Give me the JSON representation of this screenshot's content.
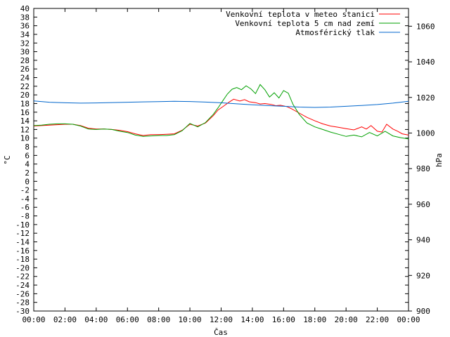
{
  "chart_data": {
    "type": "line",
    "xlabel": "Čas",
    "ylabel": "°C",
    "y2label": "hPa",
    "x_ticks": [
      "00:00",
      "02:00",
      "04:00",
      "06:00",
      "08:00",
      "10:00",
      "12:00",
      "14:00",
      "16:00",
      "18:00",
      "20:00",
      "22:00",
      "00:00"
    ],
    "xlim_hours": [
      0,
      24
    ],
    "ylim": [
      -30,
      40
    ],
    "y_tick_step": 2,
    "y2lim": [
      900,
      1070
    ],
    "y2_ticks": [
      900,
      920,
      940,
      960,
      980,
      1000,
      1020,
      1040,
      1060
    ],
    "grid": false,
    "legend_position": "top-right",
    "series": [
      {
        "name": "Venkovní teplota v meteo stanici",
        "color": "#ff0000",
        "axis": "left",
        "x": [
          0,
          0.5,
          1,
          1.5,
          2,
          2.5,
          3,
          3.5,
          4,
          4.5,
          5,
          5.5,
          6,
          6.5,
          7,
          7.5,
          8,
          8.5,
          9,
          9.5,
          10,
          10.5,
          11,
          11.5,
          11.8,
          12.2,
          12.5,
          12.8,
          13.2,
          13.5,
          13.8,
          14.2,
          14.5,
          14.8,
          15.2,
          15.5,
          15.8,
          16.2,
          16.5,
          17,
          17.5,
          18,
          18.5,
          19,
          19.5,
          20,
          20.5,
          21,
          21.3,
          21.6,
          22,
          22.3,
          22.6,
          23,
          23.3,
          23.6,
          24
        ],
        "values": [
          12.8,
          12.9,
          13,
          13.1,
          13.2,
          13.2,
          12.9,
          12.3,
          12.1,
          12.1,
          12.0,
          11.8,
          11.5,
          11.0,
          10.6,
          10.8,
          10.8,
          10.9,
          11.0,
          11.8,
          13.2,
          12.8,
          13.5,
          15.2,
          16.5,
          17.5,
          18.3,
          19.0,
          18.6,
          18.9,
          18.4,
          18.2,
          17.9,
          18.0,
          17.8,
          17.5,
          17.6,
          17.3,
          16.8,
          15.8,
          14.8,
          14.0,
          13.3,
          12.8,
          12.5,
          12.2,
          11.9,
          12.6,
          12.1,
          12.9,
          11.6,
          11.4,
          13.2,
          12.1,
          11.6,
          11.0,
          10.7
        ]
      },
      {
        "name": "Venkovní teplota 5 cm nad zemí",
        "color": "#00a000",
        "axis": "left",
        "x": [
          0,
          0.5,
          1,
          1.5,
          2,
          2.5,
          3,
          3.5,
          4,
          4.5,
          5,
          5.5,
          6,
          6.5,
          7,
          7.5,
          8,
          8.5,
          9,
          9.5,
          10,
          10.5,
          11,
          11.5,
          11.8,
          12.1,
          12.4,
          12.7,
          13,
          13.3,
          13.6,
          13.9,
          14.2,
          14.5,
          14.8,
          15.1,
          15.4,
          15.7,
          16,
          16.3,
          16.6,
          17,
          17.5,
          18,
          18.5,
          19,
          19.5,
          20,
          20.5,
          21,
          21.5,
          22,
          22.5,
          23,
          23.5,
          24
        ],
        "values": [
          12.9,
          13.0,
          13.2,
          13.3,
          13.3,
          13.2,
          12.8,
          12.1,
          12.0,
          12.1,
          12.0,
          11.6,
          11.3,
          10.7,
          10.4,
          10.5,
          10.6,
          10.6,
          10.8,
          11.7,
          13.4,
          12.6,
          13.6,
          15.5,
          17.0,
          18.6,
          20.2,
          21.3,
          21.7,
          21.2,
          22.1,
          21.4,
          20.3,
          22.4,
          21.2,
          19.5,
          20.5,
          19.3,
          21.0,
          20.4,
          17.8,
          15.5,
          13.5,
          12.6,
          12.0,
          11.4,
          10.9,
          10.4,
          10.7,
          10.3,
          11.3,
          10.5,
          11.6,
          10.5,
          10.1,
          9.8
        ]
      },
      {
        "name": "Atmosférický tlak",
        "color": "#0066cc",
        "axis": "right",
        "x": [
          0,
          1,
          2,
          3,
          4,
          5,
          6,
          7,
          8,
          9,
          10,
          11,
          12,
          13,
          14,
          15,
          16,
          17,
          18,
          19,
          20,
          21,
          22,
          23,
          24
        ],
        "values": [
          1018,
          1017.3,
          1017,
          1016.8,
          1016.9,
          1017.1,
          1017.3,
          1017.5,
          1017.6,
          1017.8,
          1017.7,
          1017.4,
          1017,
          1016.4,
          1015.9,
          1015.4,
          1015,
          1014.6,
          1014.4,
          1014.6,
          1015.0,
          1015.5,
          1016.0,
          1016.8,
          1017.8
        ]
      }
    ]
  }
}
